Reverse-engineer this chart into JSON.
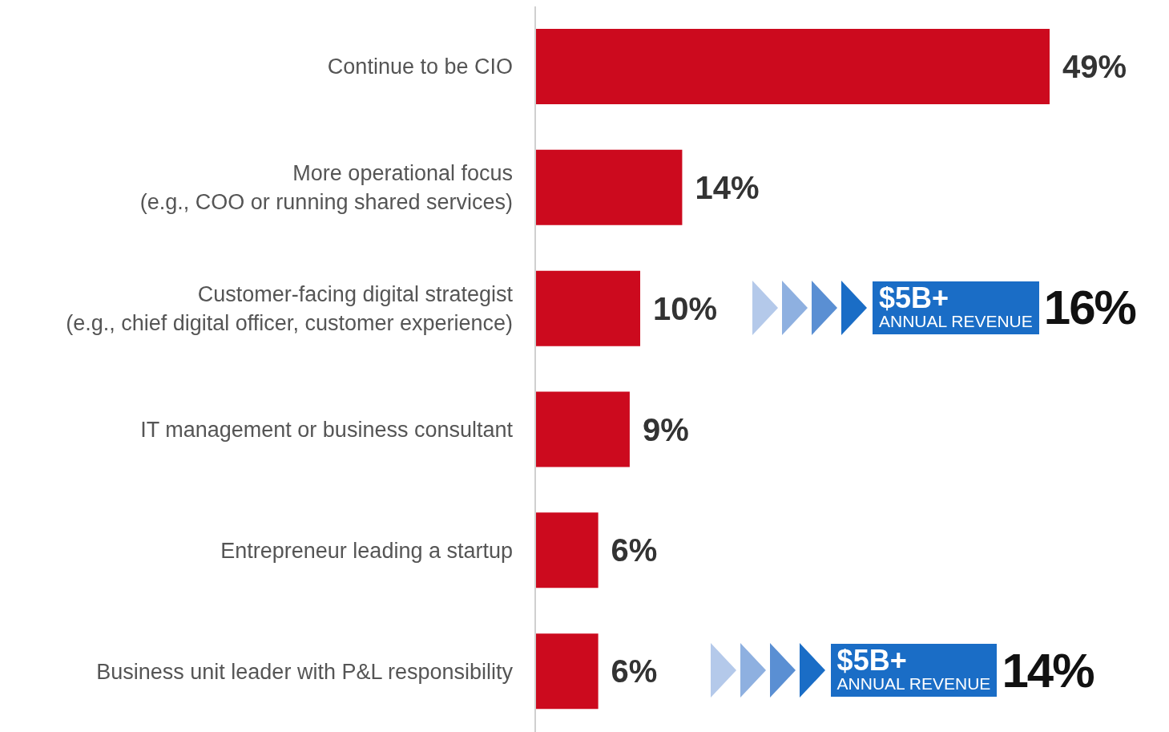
{
  "chart_data": {
    "type": "bar",
    "orientation": "horizontal",
    "categories": [
      "Continue to be CIO",
      "More operational focus\n(e.g., COO or running shared services)",
      "Customer-facing digital strategist\n(e.g., chief digital officer, customer experience)",
      "IT management or business consultant",
      "Entrepreneur leading a startup",
      "Business unit leader with P&L responsibility"
    ],
    "values": [
      49,
      14,
      10,
      9,
      6,
      6
    ],
    "color": "#cc0a1e",
    "value_labels": [
      "49%",
      "14%",
      "10%",
      "9%",
      "6%",
      "6%"
    ],
    "annotations": [
      "$5B+",
      "ANNUAL REVENUE",
      "16%",
      "$5B+",
      "ANNUAL REVENUE",
      "14%"
    ]
  }
}
